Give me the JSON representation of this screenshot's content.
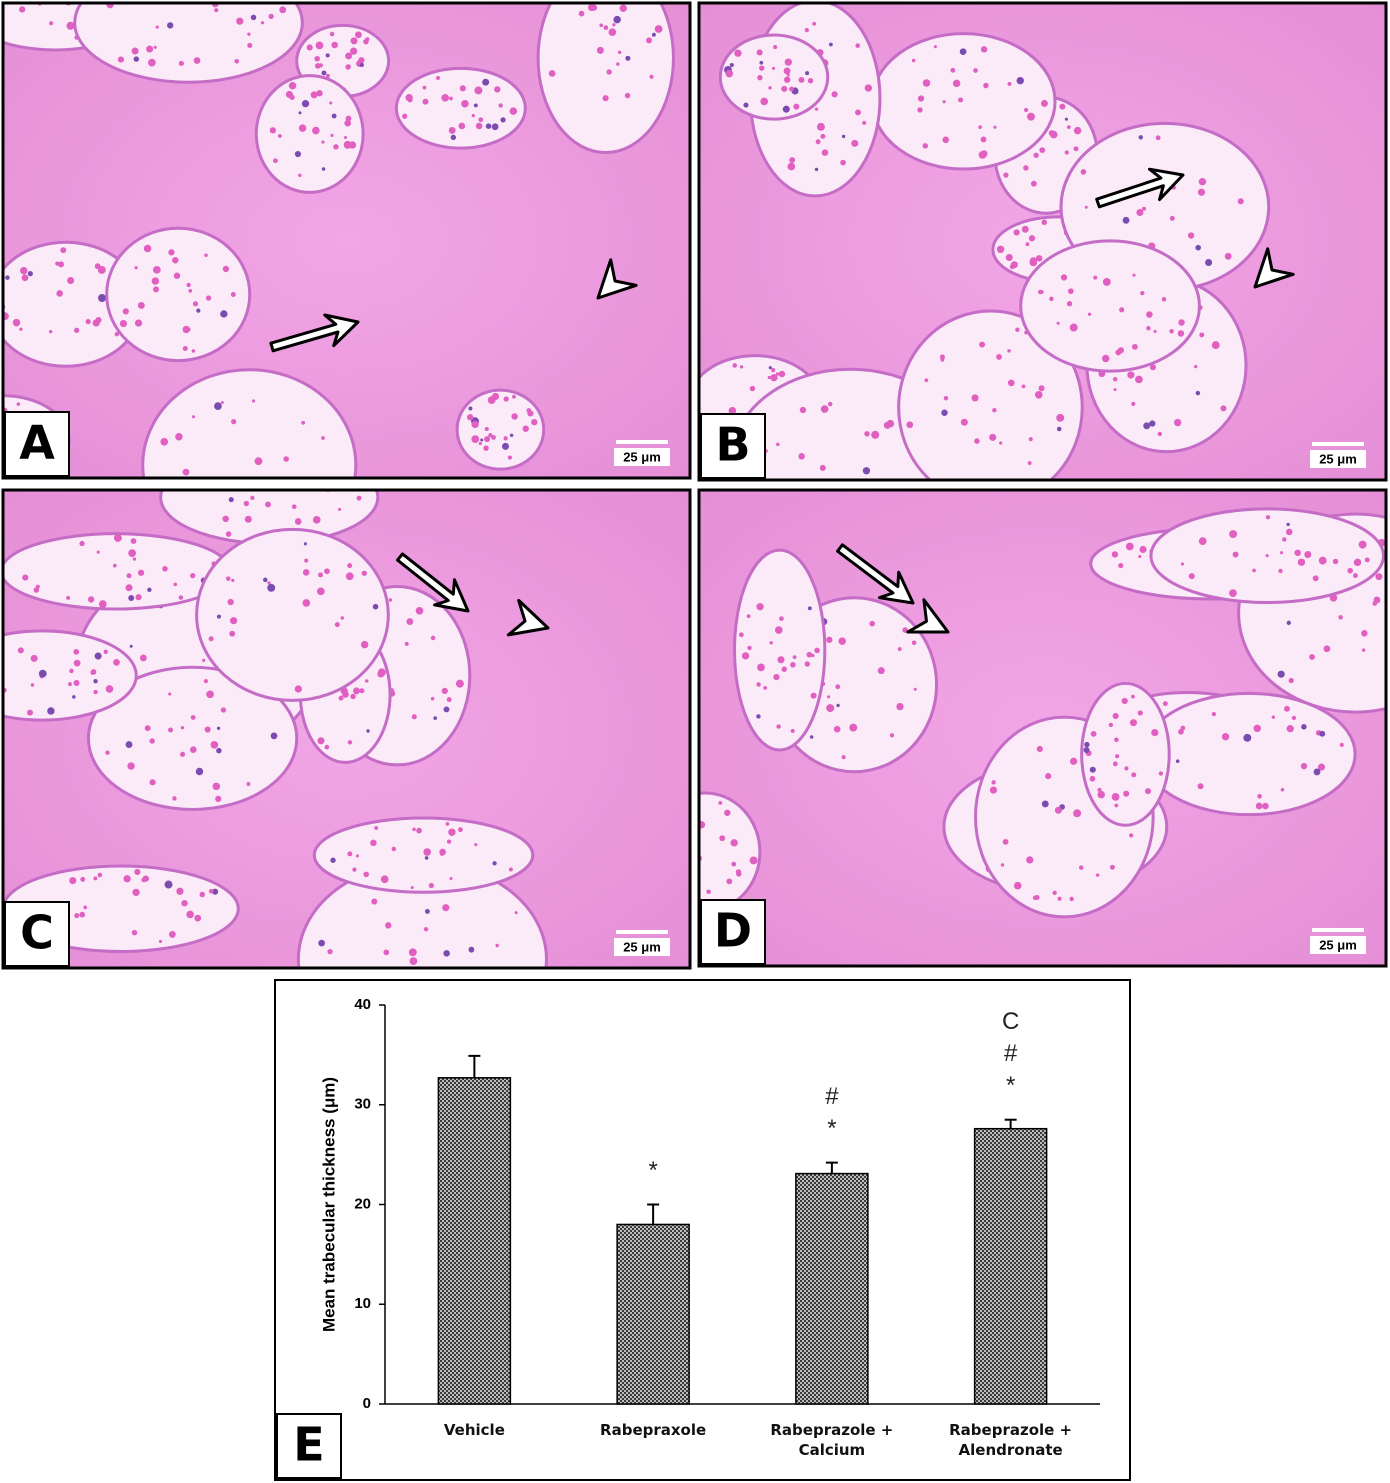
{
  "panels": [
    {
      "label": "A",
      "scale_bar": "25 μm"
    },
    {
      "label": "B",
      "scale_bar": "25 μm"
    },
    {
      "label": "C",
      "scale_bar": "25 μm"
    },
    {
      "label": "D",
      "scale_bar": "25 μm"
    }
  ],
  "chart_data": {
    "type": "bar",
    "panel_label": "E",
    "ylabel": "Mean trabecular thickness (μm)",
    "categories": [
      "Vehicle",
      "Rabepraxole",
      "Rabeprazole + Calcium",
      "Rabeprazole + Alendronate"
    ],
    "values": [
      32.7,
      18.0,
      23.1,
      27.6
    ],
    "errors": [
      2.2,
      2.0,
      1.1,
      0.9
    ],
    "value_annotations": [
      null,
      [
        "*"
      ],
      [
        "#",
        "*"
      ],
      [
        "C",
        "#",
        "*"
      ]
    ],
    "color": "#4a4a4a",
    "ylim": [
      0,
      40
    ],
    "yticks": [
      0,
      10,
      20,
      30,
      40
    ]
  }
}
